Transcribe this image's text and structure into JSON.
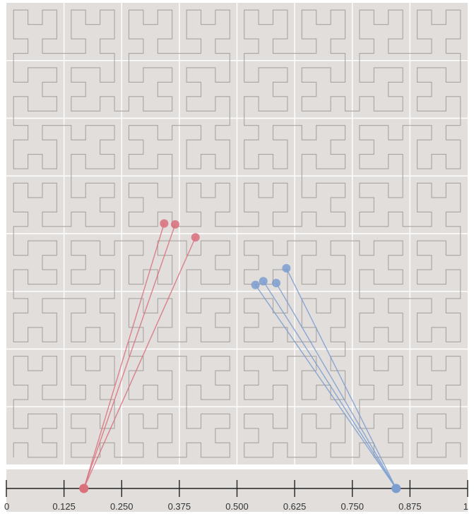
{
  "diagram": {
    "grid": {
      "cells": 8,
      "background": "#e2dedb",
      "line_color": "#ffffff"
    },
    "curve": {
      "type": "hilbert",
      "order": 5,
      "color": "#a8a4a1"
    },
    "axis": {
      "min": 0,
      "max": 1,
      "ticks": [
        {
          "value": 0,
          "label": "0"
        },
        {
          "value": 0.125,
          "label": "0.125"
        },
        {
          "value": 0.25,
          "label": "0.250"
        },
        {
          "value": 0.375,
          "label": "0.375"
        },
        {
          "value": 0.5,
          "label": "0.500"
        },
        {
          "value": 0.625,
          "label": "0.625"
        },
        {
          "value": 0.75,
          "label": "0.750"
        },
        {
          "value": 0.875,
          "label": "0.875"
        },
        {
          "value": 1,
          "label": "1"
        }
      ],
      "band_color": "#e2dedb"
    },
    "groups": [
      {
        "color": "#d9707c",
        "axis_value": 0.168,
        "points": [
          {
            "x": 0.342,
            "y": 0.478
          },
          {
            "x": 0.366,
            "y": 0.48
          },
          {
            "x": 0.41,
            "y": 0.508
          }
        ]
      },
      {
        "color": "#7b9ed0",
        "axis_value": 0.845,
        "points": [
          {
            "x": 0.607,
            "y": 0.575
          },
          {
            "x": 0.54,
            "y": 0.611
          },
          {
            "x": 0.557,
            "y": 0.603
          },
          {
            "x": 0.585,
            "y": 0.607
          }
        ]
      }
    ]
  }
}
